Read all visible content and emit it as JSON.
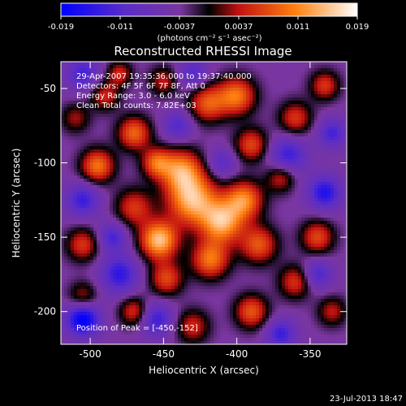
{
  "colorbar": {
    "ticks": [
      "-0.019",
      "-0.011",
      "-0.0037",
      "0.0037",
      "0.011",
      "0.019"
    ],
    "units_label": "(photons cm⁻² s⁻¹ asec⁻²)",
    "stops": [
      {
        "value": -0.019,
        "color": "#0000ff"
      },
      {
        "value": -0.011,
        "color": "#5a2cc8"
      },
      {
        "value": -0.0037,
        "color": "#7a36a0"
      },
      {
        "value": 0.0,
        "color": "#000000"
      },
      {
        "value": 0.0037,
        "color": "#c01010"
      },
      {
        "value": 0.011,
        "color": "#ff8010"
      },
      {
        "value": 0.019,
        "color": "#ffffff"
      }
    ]
  },
  "chart_data": {
    "type": "heatmap",
    "title": "Reconstructed RHESSI Image",
    "xlabel": "Heliocentric X (arcsec)",
    "ylabel": "Heliocentric Y (arcsec)",
    "xlim": [
      -520,
      -325
    ],
    "ylim": [
      -222,
      -32
    ],
    "xticks": [
      -500,
      -450,
      -400,
      -350
    ],
    "yticks": [
      -200,
      -150,
      -100,
      -50
    ],
    "info_lines": [
      "29-Apr-2007 19:35:36.000 to 19:37:40.000",
      "Detectors: 4F 5F 6F 7F 8F, Att 0",
      "Energy Range: 3.0 - 6.0 keV",
      "Clean    Total counts: 7.82E+03"
    ],
    "peak_label": "Position of Peak = [-450,-152]",
    "peak": [
      -450,
      -152
    ],
    "blobs": [
      {
        "x": -453,
        "y": -152,
        "v": 0.019,
        "s": 9
      },
      {
        "x": -430,
        "y": -125,
        "v": 0.018,
        "s": 12
      },
      {
        "x": -438,
        "y": -105,
        "v": 0.015,
        "s": 10
      },
      {
        "x": -410,
        "y": -140,
        "v": 0.017,
        "s": 10
      },
      {
        "x": -418,
        "y": -165,
        "v": 0.014,
        "s": 9
      },
      {
        "x": -395,
        "y": -125,
        "v": 0.015,
        "s": 9
      },
      {
        "x": -385,
        "y": -155,
        "v": 0.012,
        "s": 9
      },
      {
        "x": -448,
        "y": -178,
        "v": 0.011,
        "s": 8
      },
      {
        "x": -470,
        "y": -130,
        "v": 0.01,
        "s": 9
      },
      {
        "x": -495,
        "y": -102,
        "v": 0.014,
        "s": 8
      },
      {
        "x": -505,
        "y": -155,
        "v": 0.01,
        "s": 8
      },
      {
        "x": -470,
        "y": -80,
        "v": 0.013,
        "s": 8
      },
      {
        "x": -455,
        "y": -100,
        "v": 0.012,
        "s": 7
      },
      {
        "x": -420,
        "y": -60,
        "v": 0.012,
        "s": 9
      },
      {
        "x": -400,
        "y": -55,
        "v": 0.014,
        "s": 9
      },
      {
        "x": -390,
        "y": -88,
        "v": 0.011,
        "s": 8
      },
      {
        "x": -360,
        "y": -70,
        "v": 0.01,
        "s": 8
      },
      {
        "x": -340,
        "y": -48,
        "v": 0.01,
        "s": 7
      },
      {
        "x": -370,
        "y": -110,
        "v": 0.009,
        "s": 7
      },
      {
        "x": -345,
        "y": -150,
        "v": 0.011,
        "s": 8
      },
      {
        "x": -360,
        "y": -180,
        "v": 0.01,
        "s": 8
      },
      {
        "x": -335,
        "y": -200,
        "v": 0.008,
        "s": 7
      },
      {
        "x": -390,
        "y": -200,
        "v": 0.012,
        "s": 8
      },
      {
        "x": -430,
        "y": -210,
        "v": 0.009,
        "s": 8
      },
      {
        "x": -470,
        "y": -200,
        "v": 0.01,
        "s": 7
      },
      {
        "x": -505,
        "y": -190,
        "v": 0.008,
        "s": 7
      },
      {
        "x": -490,
        "y": -55,
        "v": 0.009,
        "s": 7
      },
      {
        "x": -510,
        "y": -70,
        "v": 0.007,
        "s": 7
      },
      {
        "x": -450,
        "y": -45,
        "v": 0.008,
        "s": 7
      },
      {
        "x": -480,
        "y": -40,
        "v": 0.009,
        "s": 6
      },
      {
        "x": -505,
        "y": -205,
        "v": -0.016,
        "s": 8
      },
      {
        "x": -480,
        "y": -175,
        "v": -0.011,
        "s": 9
      },
      {
        "x": -455,
        "y": -205,
        "v": -0.01,
        "s": 8
      },
      {
        "x": -365,
        "y": -95,
        "v": -0.01,
        "s": 9
      },
      {
        "x": -340,
        "y": -120,
        "v": -0.012,
        "s": 8
      },
      {
        "x": -335,
        "y": -80,
        "v": -0.009,
        "s": 7
      },
      {
        "x": -505,
        "y": -125,
        "v": -0.01,
        "s": 8
      },
      {
        "x": -505,
        "y": -40,
        "v": -0.009,
        "s": 8
      },
      {
        "x": -430,
        "y": -40,
        "v": -0.008,
        "s": 7
      },
      {
        "x": -410,
        "y": -100,
        "v": -0.007,
        "s": 7
      },
      {
        "x": -370,
        "y": -215,
        "v": -0.01,
        "s": 7
      },
      {
        "x": -345,
        "y": -175,
        "v": -0.009,
        "s": 7
      },
      {
        "x": -485,
        "y": -150,
        "v": -0.009,
        "s": 7
      },
      {
        "x": -440,
        "y": -75,
        "v": -0.008,
        "s": 7
      }
    ]
  },
  "footer": {
    "timestamp": "23-Jul-2013 18:47"
  }
}
